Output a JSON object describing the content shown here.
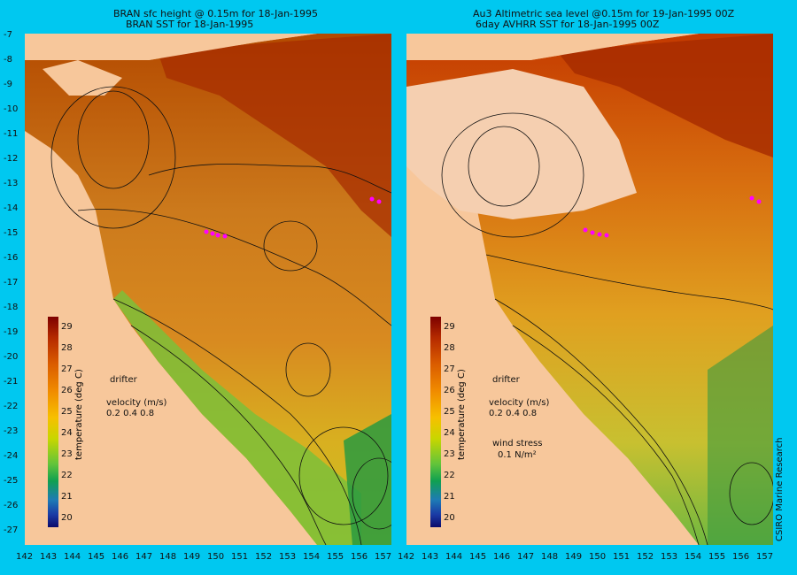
{
  "left_panel": {
    "title_line1": "BRAN sfc height @ 0.15m for 18-Jan-1995",
    "title_line2": "BRAN SST for 18-Jan-1995"
  },
  "right_panel": {
    "title_line1": "Au3 Altimetric sea level  @0.15m  for 19-Jan-1995 00Z",
    "title_line2": "6day AVHRR SST for 18-Jan-1995 00Z"
  },
  "y_ticks": [
    "-7",
    "-8",
    "-9",
    "-10",
    "-11",
    "-12",
    "-13",
    "-14",
    "-15",
    "-16",
    "-17",
    "-18",
    "-19",
    "-20",
    "-21",
    "-22",
    "-23",
    "-24",
    "-25",
    "-26",
    "-27"
  ],
  "x_ticks": [
    "142",
    "143",
    "144",
    "145",
    "146",
    "147",
    "148",
    "149",
    "150",
    "151",
    "152",
    "153",
    "154",
    "155",
    "156",
    "157"
  ],
  "legend": {
    "drifter": "drifter",
    "velocity": "velocity (m/s)",
    "velocity_scale": "0.2 0.4 0.8",
    "wind_stress": "wind stress",
    "wind_scale": "0.1 N/m²"
  },
  "colorbar": {
    "title": "temperature (deg C)",
    "ticks": [
      "29",
      "28",
      "27",
      "26",
      "25",
      "24",
      "23",
      "22",
      "21",
      "20"
    ]
  },
  "credit": "CSIRO Marine Research",
  "colors": {
    "background": "#00c8f0",
    "land": "#f7c79b",
    "drifter": "#ff00ff"
  }
}
